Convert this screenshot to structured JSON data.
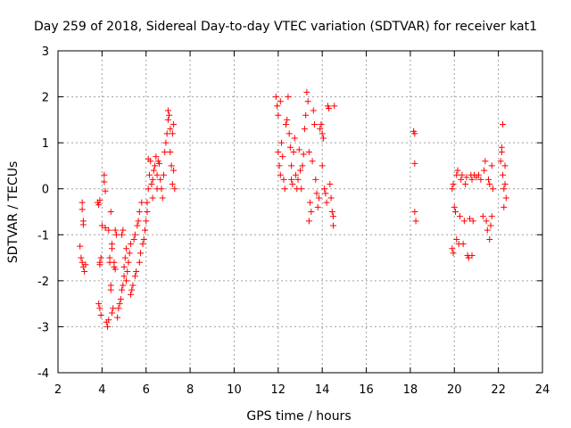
{
  "chart_data": {
    "type": "scatter",
    "title": "Day 259 of 2018, Sidereal Day-to-day VTEC variation (SDTVAR) for receiver kat1",
    "xlabel": "GPS time / hours",
    "ylabel": "SDTVAR / TECUs",
    "xlim": [
      2,
      24
    ],
    "ylim": [
      -4,
      3
    ],
    "xticks": [
      "2",
      "4",
      "6",
      "8",
      "10",
      "12",
      "14",
      "16",
      "18",
      "20",
      "22",
      "24"
    ],
    "yticks": [
      "-4",
      "-3",
      "-2",
      "-1",
      "0",
      "1",
      "2",
      "3"
    ],
    "grid": true,
    "marker": "+",
    "series": [
      {
        "name": "SDTVAR",
        "color": "#ff0000",
        "points": [
          [
            3.0,
            -1.25
          ],
          [
            3.05,
            -1.5
          ],
          [
            3.1,
            -1.6
          ],
          [
            3.15,
            -1.7
          ],
          [
            3.2,
            -1.8
          ],
          [
            3.25,
            -1.65
          ],
          [
            3.1,
            -0.3
          ],
          [
            3.1,
            -0.45
          ],
          [
            3.15,
            -0.7
          ],
          [
            3.15,
            -0.78
          ],
          [
            3.8,
            -0.3
          ],
          [
            3.85,
            -0.35
          ],
          [
            3.9,
            -0.25
          ],
          [
            3.85,
            -2.5
          ],
          [
            3.9,
            -2.6
          ],
          [
            3.95,
            -2.75
          ],
          [
            3.95,
            -1.5
          ],
          [
            3.9,
            -1.6
          ],
          [
            3.9,
            -1.65
          ],
          [
            4.0,
            -0.8
          ],
          [
            4.1,
            0.3
          ],
          [
            4.1,
            0.15
          ],
          [
            4.15,
            -0.05
          ],
          [
            4.15,
            -0.85
          ],
          [
            4.2,
            -2.9
          ],
          [
            4.25,
            -3.0
          ],
          [
            4.3,
            -2.85
          ],
          [
            4.3,
            -0.9
          ],
          [
            4.35,
            -1.5
          ],
          [
            4.35,
            -1.6
          ],
          [
            4.4,
            -2.1
          ],
          [
            4.4,
            -2.2
          ],
          [
            4.45,
            -1.2
          ],
          [
            4.45,
            -1.3
          ],
          [
            4.4,
            -0.5
          ],
          [
            4.45,
            -2.7
          ],
          [
            4.5,
            -2.6
          ],
          [
            4.55,
            -1.6
          ],
          [
            4.55,
            -1.7
          ],
          [
            4.6,
            -1.75
          ],
          [
            4.6,
            -0.9
          ],
          [
            4.65,
            -1.0
          ],
          [
            4.7,
            -2.8
          ],
          [
            4.75,
            -2.6
          ],
          [
            4.8,
            -2.5
          ],
          [
            4.85,
            -2.4
          ],
          [
            4.9,
            -1.0
          ],
          [
            4.95,
            -0.9
          ],
          [
            4.9,
            -2.2
          ],
          [
            4.95,
            -2.1
          ],
          [
            5.0,
            -1.7
          ],
          [
            5.0,
            -1.9
          ],
          [
            5.05,
            -1.5
          ],
          [
            5.1,
            -1.3
          ],
          [
            5.1,
            -2.0
          ],
          [
            5.15,
            -1.8
          ],
          [
            5.2,
            -1.6
          ],
          [
            5.25,
            -1.4
          ],
          [
            5.3,
            -1.2
          ],
          [
            5.3,
            -2.3
          ],
          [
            5.35,
            -2.2
          ],
          [
            5.4,
            -2.1
          ],
          [
            5.45,
            -1.1
          ],
          [
            5.5,
            -1.0
          ],
          [
            5.5,
            -1.9
          ],
          [
            5.55,
            -1.8
          ],
          [
            5.6,
            -0.8
          ],
          [
            5.65,
            -0.7
          ],
          [
            5.7,
            -0.5
          ],
          [
            5.7,
            -1.6
          ],
          [
            5.75,
            -1.4
          ],
          [
            5.8,
            -0.3
          ],
          [
            5.85,
            -1.2
          ],
          [
            5.9,
            -1.1
          ],
          [
            5.95,
            -0.9
          ],
          [
            6.0,
            -0.7
          ],
          [
            6.05,
            -0.5
          ],
          [
            6.05,
            -0.3
          ],
          [
            6.1,
            0.0
          ],
          [
            6.15,
            0.3
          ],
          [
            6.2,
            0.6
          ],
          [
            6.1,
            0.65
          ],
          [
            6.25,
            0.1
          ],
          [
            6.3,
            0.2
          ],
          [
            6.3,
            -0.2
          ],
          [
            6.35,
            0.4
          ],
          [
            6.4,
            0.5
          ],
          [
            6.45,
            0.7
          ],
          [
            6.5,
            0.3
          ],
          [
            6.5,
            0.0
          ],
          [
            6.55,
            0.6
          ],
          [
            6.6,
            0.55
          ],
          [
            6.65,
            0.2
          ],
          [
            6.7,
            0.0
          ],
          [
            6.75,
            -0.2
          ],
          [
            6.8,
            0.3
          ],
          [
            6.85,
            0.8
          ],
          [
            6.9,
            1.0
          ],
          [
            6.95,
            1.2
          ],
          [
            7.0,
            1.5
          ],
          [
            7.0,
            1.7
          ],
          [
            7.05,
            1.6
          ],
          [
            7.1,
            1.3
          ],
          [
            7.1,
            0.8
          ],
          [
            7.15,
            0.5
          ],
          [
            7.2,
            0.1
          ],
          [
            7.2,
            1.2
          ],
          [
            7.25,
            1.4
          ],
          [
            7.3,
            0.0
          ],
          [
            7.25,
            0.4
          ],
          [
            11.9,
            2.0
          ],
          [
            11.95,
            1.8
          ],
          [
            12.0,
            1.6
          ],
          [
            12.0,
            0.8
          ],
          [
            12.05,
            0.5
          ],
          [
            12.1,
            0.3
          ],
          [
            12.1,
            1.9
          ],
          [
            12.15,
            1.0
          ],
          [
            12.2,
            0.7
          ],
          [
            12.25,
            0.2
          ],
          [
            12.3,
            0.0
          ],
          [
            12.35,
            1.4
          ],
          [
            12.4,
            1.5
          ],
          [
            12.45,
            2.0
          ],
          [
            12.5,
            1.2
          ],
          [
            12.55,
            0.9
          ],
          [
            12.6,
            0.5
          ],
          [
            12.6,
            0.2
          ],
          [
            12.65,
            0.1
          ],
          [
            12.7,
            0.8
          ],
          [
            12.75,
            1.1
          ],
          [
            12.8,
            0.3
          ],
          [
            12.85,
            0.0
          ],
          [
            12.9,
            0.2
          ],
          [
            12.95,
            0.85
          ],
          [
            13.0,
            0.4
          ],
          [
            13.05,
            0.0
          ],
          [
            13.1,
            0.5
          ],
          [
            13.15,
            0.75
          ],
          [
            13.2,
            1.3
          ],
          [
            13.25,
            1.6
          ],
          [
            13.3,
            2.1
          ],
          [
            13.35,
            1.9
          ],
          [
            13.4,
            0.8
          ],
          [
            13.45,
            -0.3
          ],
          [
            13.5,
            -0.5
          ],
          [
            13.55,
            0.6
          ],
          [
            13.6,
            1.7
          ],
          [
            13.65,
            1.4
          ],
          [
            13.7,
            0.2
          ],
          [
            13.75,
            -0.1
          ],
          [
            13.8,
            -0.4
          ],
          [
            13.85,
            -0.2
          ],
          [
            13.9,
            1.3
          ],
          [
            13.95,
            1.4
          ],
          [
            14.0,
            1.2
          ],
          [
            14.05,
            1.1
          ],
          [
            14.1,
            0.0
          ],
          [
            14.15,
            -0.1
          ],
          [
            14.2,
            -0.3
          ],
          [
            14.25,
            1.8
          ],
          [
            14.3,
            1.75
          ],
          [
            14.35,
            0.1
          ],
          [
            14.4,
            -0.2
          ],
          [
            14.45,
            -0.5
          ],
          [
            14.5,
            -0.6
          ],
          [
            14.55,
            1.8
          ],
          [
            14.5,
            -0.8
          ],
          [
            13.4,
            -0.7
          ],
          [
            14.0,
            0.5
          ],
          [
            18.15,
            1.25
          ],
          [
            18.2,
            1.2
          ],
          [
            18.2,
            0.55
          ],
          [
            18.2,
            -0.5
          ],
          [
            18.25,
            -0.7
          ],
          [
            19.9,
            -1.3
          ],
          [
            19.95,
            -1.4
          ],
          [
            19.9,
            0.0
          ],
          [
            19.95,
            0.1
          ],
          [
            20.0,
            -0.4
          ],
          [
            20.05,
            -0.5
          ],
          [
            20.1,
            0.3
          ],
          [
            20.15,
            0.4
          ],
          [
            20.1,
            -1.1
          ],
          [
            20.2,
            -1.2
          ],
          [
            20.25,
            -0.6
          ],
          [
            20.3,
            0.2
          ],
          [
            20.35,
            0.3
          ],
          [
            20.4,
            -1.2
          ],
          [
            20.45,
            -0.7
          ],
          [
            20.5,
            0.1
          ],
          [
            20.55,
            0.25
          ],
          [
            20.6,
            -1.45
          ],
          [
            20.65,
            -1.5
          ],
          [
            20.7,
            -0.65
          ],
          [
            20.75,
            0.3
          ],
          [
            20.8,
            0.2
          ],
          [
            20.8,
            -1.45
          ],
          [
            20.85,
            -0.7
          ],
          [
            20.9,
            0.3
          ],
          [
            21.0,
            0.25
          ],
          [
            21.1,
            0.3
          ],
          [
            21.2,
            0.2
          ],
          [
            21.3,
            -0.6
          ],
          [
            21.35,
            0.4
          ],
          [
            21.4,
            0.6
          ],
          [
            21.45,
            -0.7
          ],
          [
            21.5,
            -0.9
          ],
          [
            21.55,
            0.2
          ],
          [
            21.6,
            0.1
          ],
          [
            21.6,
            -1.1
          ],
          [
            21.65,
            -0.8
          ],
          [
            21.7,
            0.5
          ],
          [
            21.75,
            0.0
          ],
          [
            21.7,
            -0.6
          ],
          [
            22.1,
            0.6
          ],
          [
            22.15,
            0.8
          ],
          [
            22.2,
            1.4
          ],
          [
            22.2,
            0.3
          ],
          [
            22.25,
            0.0
          ],
          [
            22.25,
            -0.4
          ],
          [
            22.3,
            0.5
          ],
          [
            22.3,
            0.1
          ],
          [
            22.35,
            -0.2
          ],
          [
            22.15,
            0.9
          ]
        ]
      }
    ]
  }
}
